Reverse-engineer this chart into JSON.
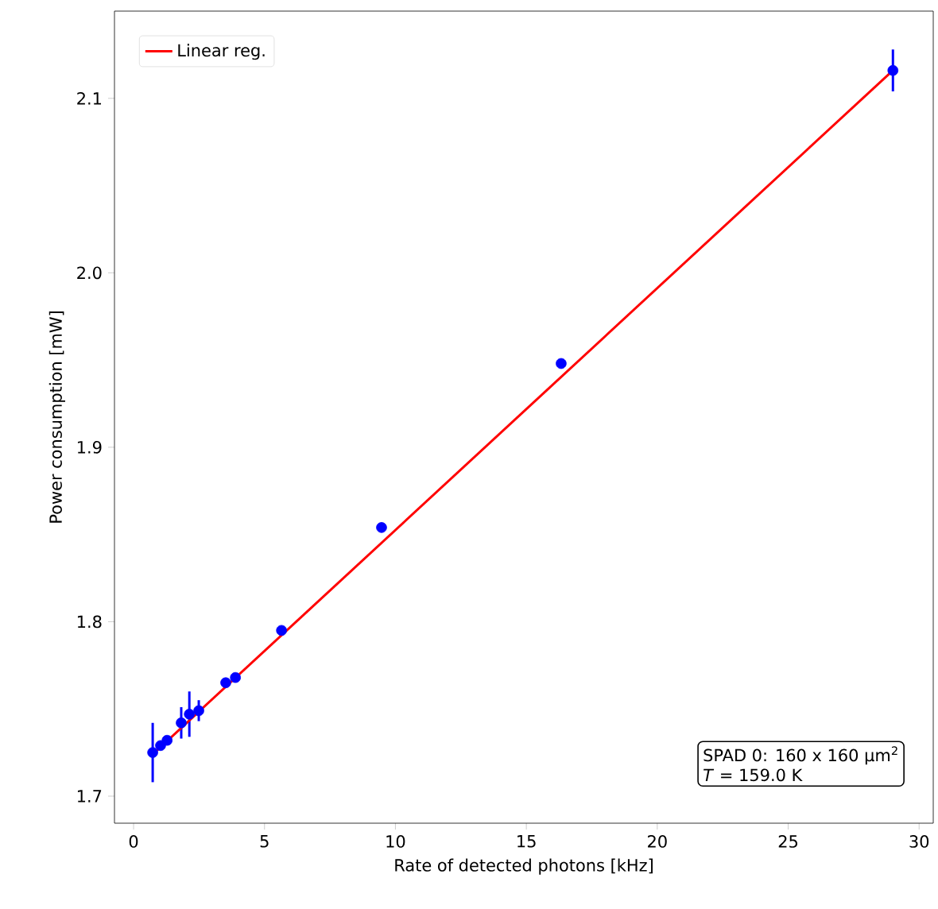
{
  "chart_data": {
    "type": "scatter",
    "xlabel": "Rate of detected photons [kHz]",
    "ylabel": "Power consumption [mW]",
    "xlim": [
      -0.73,
      30.54
    ],
    "ylim": [
      1.6845,
      2.15
    ],
    "xticks": [
      0,
      5,
      10,
      15,
      20,
      25,
      30
    ],
    "yticks": [
      {
        "value": 1.7,
        "label": "1.7"
      },
      {
        "value": 1.8,
        "label": "1.8"
      },
      {
        "value": 1.9,
        "label": "1.9"
      },
      {
        "value": 2.0,
        "label": "2.0"
      },
      {
        "value": 2.1,
        "label": "2.1"
      }
    ],
    "grid": false,
    "legend": "top left",
    "annotations": [
      "SPAD 0: 160 x 160 µm$^{2}$",
      "*T* =  159.0 K"
    ],
    "series": [
      {
        "marker": "circle",
        "color": "#0000ff",
        "x": [
          0.73,
          1.03,
          1.28,
          1.82,
          2.13,
          2.49,
          3.52,
          3.89,
          5.65,
          9.47,
          16.33,
          29.0
        ],
        "values": [
          1.725,
          1.729,
          1.732,
          1.742,
          1.747,
          1.749,
          1.765,
          1.768,
          1.795,
          1.854,
          1.948,
          2.116
        ],
        "errors": [
          0.017,
          null,
          null,
          0.009,
          0.013,
          0.006,
          null,
          null,
          null,
          null,
          null,
          0.012
        ]
      },
      {
        "type": "line",
        "name": "Linear reg.",
        "color": "#ff0000",
        "x": [
          0.73,
          29.0
        ],
        "values": [
          1.724,
          2.116
        ],
        "marker": "none"
      }
    ]
  }
}
